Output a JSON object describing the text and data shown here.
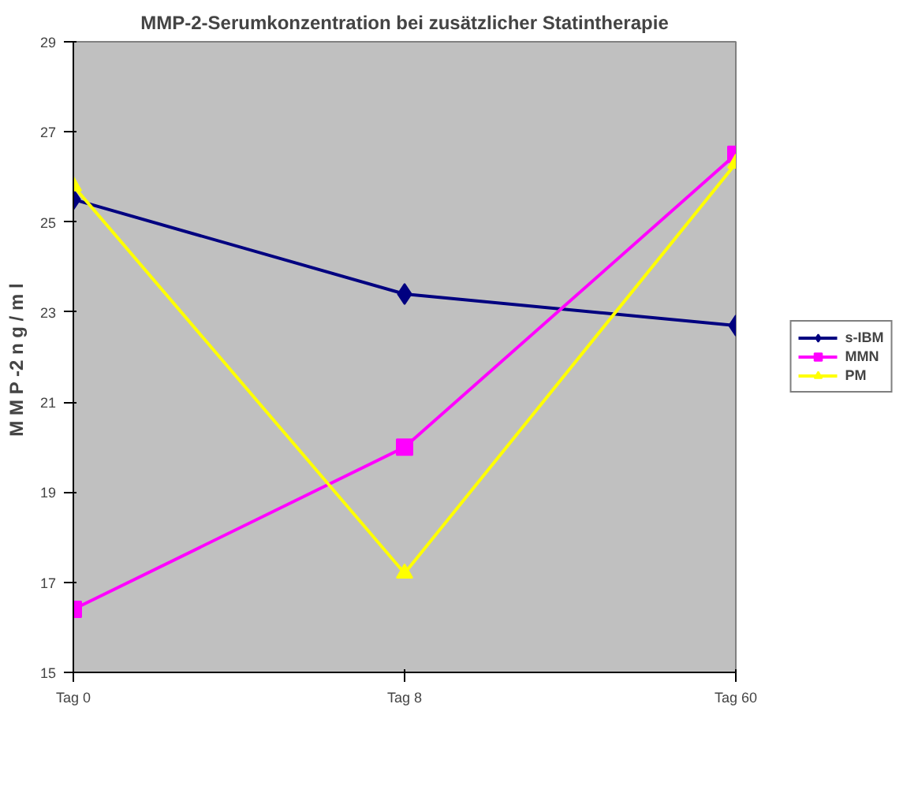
{
  "chart_data": {
    "type": "line",
    "title": "MMP-2-Serumkonzentration bei zusätzlicher Statintherapie",
    "ylabel": "M M P -2  n g / m l",
    "categories": [
      "Tag 0",
      "Tag 8",
      "Tag 60"
    ],
    "series": [
      {
        "name": "s-IBM",
        "color": "#000080",
        "marker": "diamond",
        "values": [
          25.5,
          23.4,
          22.7
        ]
      },
      {
        "name": "MMN",
        "color": "#ff00ff",
        "marker": "square",
        "values": [
          16.4,
          20.0,
          26.5
        ]
      },
      {
        "name": "PM",
        "color": "#ffff00",
        "marker": "triangle",
        "values": [
          25.8,
          17.2,
          26.3
        ]
      }
    ],
    "ylim": [
      15,
      29
    ],
    "yticks": [
      15,
      17,
      19,
      21,
      23,
      25,
      27,
      29
    ],
    "grid": false,
    "legend": "right",
    "line_style": "solid"
  }
}
